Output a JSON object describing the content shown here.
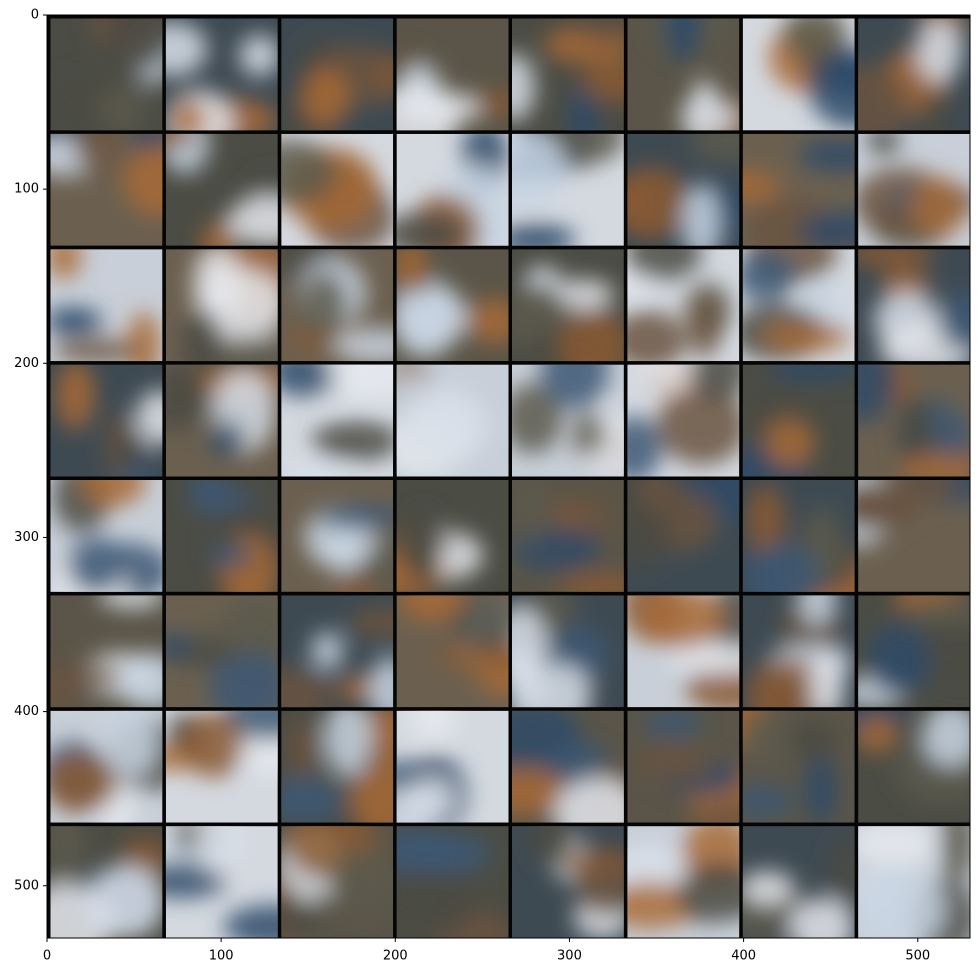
{
  "chart_data": {
    "type": "image",
    "xlim": [
      0,
      530
    ],
    "ylim": [
      530,
      0
    ],
    "xticks": [
      0,
      100,
      200,
      300,
      400,
      500
    ],
    "yticks": [
      0,
      100,
      200,
      300,
      400,
      500
    ]
  }
}
